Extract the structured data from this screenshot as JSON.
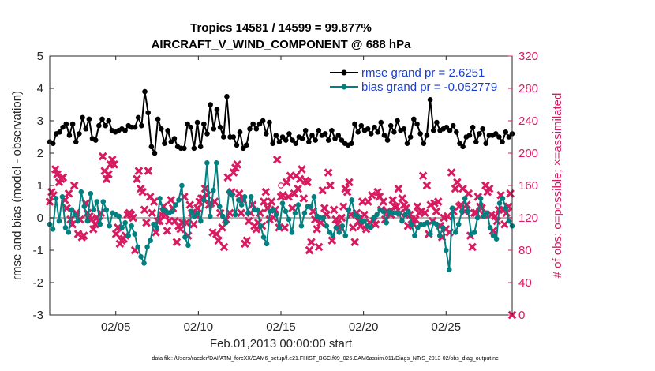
{
  "chart_data": {
    "type": "line",
    "title_line1": "Tropics 14581 / 14599 = 99.877%",
    "title_line2": "AIRCRAFT_V_WIND_COMPONENT @ 688 hPa",
    "xlabel": "Feb.01,2013 00:00:00 start",
    "ylabel_left": "rmse and bias (model - observation)",
    "ylabel_right": "# of obs: o=possible; ×=assimilated",
    "ylim_left": [
      -3,
      5
    ],
    "ylim_right": [
      0,
      320
    ],
    "xlim_days": [
      1,
      29
    ],
    "yticks_left": [
      "-3",
      "-2",
      "-1",
      "0",
      "1",
      "2",
      "3",
      "4",
      "5"
    ],
    "yticks_right": [
      "0",
      "40",
      "80",
      "120",
      "160",
      "200",
      "240",
      "280",
      "320"
    ],
    "xticks": [
      {
        "day": 5,
        "label": "02/05"
      },
      {
        "day": 10,
        "label": "02/10"
      },
      {
        "day": 15,
        "label": "02/15"
      },
      {
        "day": 20,
        "label": "02/20"
      },
      {
        "day": 25,
        "label": "02/25"
      }
    ],
    "footer": "data file: /Users/raeder/DAI/ATM_forcXX/CAM6_setup/f.e21.FHIST_BGC.f09_025.CAM6assim.011/Diags_NTrS_2013-02/obs_diag_output.nc",
    "series": [
      {
        "name": "rmse grand pr = 2.6251",
        "axis": "left",
        "color": "#000000",
        "values": [
          2.35,
          2.3,
          2.6,
          2.65,
          2.8,
          2.9,
          2.55,
          2.9,
          2.35,
          2.6,
          3.1,
          2.75,
          3.05,
          2.45,
          2.4,
          2.85,
          3.05,
          2.85,
          3.0,
          2.7,
          2.65,
          2.7,
          2.75,
          2.7,
          2.85,
          2.8,
          2.8,
          3.1,
          2.85,
          3.9,
          3.25,
          2.2,
          2.0,
          3.05,
          2.75,
          2.3,
          2.7,
          2.35,
          2.45,
          2.2,
          2.15,
          2.15,
          2.9,
          2.8,
          2.15,
          2.95,
          2.2,
          2.9,
          2.6,
          3.5,
          2.75,
          3.35,
          2.8,
          2.5,
          3.75,
          2.5,
          2.5,
          2.25,
          2.65,
          2.15,
          2.25,
          2.75,
          2.9,
          2.75,
          2.9,
          3.0,
          2.6,
          2.95,
          2.3,
          2.55,
          2.35,
          2.5,
          2.4,
          2.6,
          2.4,
          2.3,
          2.5,
          2.45,
          2.7,
          2.35,
          2.55,
          2.4,
          2.7,
          2.55,
          2.6,
          2.4,
          2.7,
          2.45,
          2.55,
          2.4,
          2.3,
          2.25,
          2.3,
          2.9,
          2.65,
          2.85,
          2.7,
          2.75,
          2.6,
          2.8,
          2.65,
          2.95,
          2.55,
          2.4,
          2.85,
          2.65,
          3.0,
          2.7,
          2.75,
          2.3,
          2.5,
          3.05,
          2.9,
          2.6,
          2.3,
          2.55,
          3.65,
          2.7,
          2.95,
          2.7,
          2.75,
          2.8,
          2.7,
          2.85,
          2.65,
          2.3,
          2.2,
          2.5,
          2.55,
          2.8,
          2.35,
          2.6,
          2.75,
          2.3,
          2.55,
          2.55,
          2.6,
          2.5,
          2.35,
          2.65,
          2.5,
          2.6
        ]
      },
      {
        "name": "bias grand pr = -0.052779",
        "axis": "left",
        "color": "#008080",
        "values": [
          -0.2,
          -0.35,
          0.6,
          -0.1,
          0.65,
          -0.3,
          -0.45,
          0.25,
          0.1,
          -0.1,
          0.8,
          0.35,
          -0.1,
          0.75,
          0.25,
          0.5,
          -0.2,
          0.5,
          0.25,
          -0.25,
          0.15,
          0.1,
          0.05,
          -0.3,
          -0.15,
          -0.55,
          -0.25,
          -0.5,
          -0.9,
          -1.2,
          -1.4,
          -0.9,
          -0.7,
          -0.2,
          -0.3,
          0.6,
          0.25,
          0.2,
          0.15,
          0.2,
          0.4,
          0.55,
          1.0,
          -0.6,
          -0.85,
          0.2,
          0.05,
          0.15,
          -0.1,
          0.55,
          1.7,
          0.05,
          0.85,
          1.7,
          0.35,
          0.05,
          -0.15,
          0.8,
          0.7,
          0.1,
          0.55,
          0.4,
          0.65,
          0.15,
          0.65,
          0.25,
          0.25,
          -0.25,
          -0.6,
          -0.8,
          0.2,
          0.25,
          0.1,
          -0.3,
          0.45,
          0.2,
          -0.05,
          -0.45,
          0.15,
          0.4,
          -0.25,
          0.15,
          0.35,
          0.35,
          0.65,
          0.05,
          0.0,
          0.0,
          -0.25,
          -0.45,
          -0.55,
          -0.3,
          -0.45,
          -0.25,
          -0.55,
          0.25,
          0.55,
          0.1,
          0.05,
          -0.1,
          -0.1,
          -0.25,
          -0.3,
          0.0,
          0.1,
          0.25,
          0.2,
          -0.15,
          0.2,
          0.15,
          0.15,
          0.15,
          -0.1,
          0.1,
          0.2,
          -0.2,
          -0.55,
          -0.3,
          -0.2,
          -0.2,
          -0.15,
          -0.5,
          -0.15,
          -0.2,
          -0.55,
          -0.3,
          -1.0,
          -1.6,
          0.3,
          -0.45,
          -0.2,
          0.2,
          0.6,
          0.2,
          -0.5,
          -0.45,
          0.0,
          0.6,
          0.05,
          0.15,
          -0.3,
          -0.55,
          -0.65,
          0.45,
          0.6,
          0.3,
          -0.1,
          -0.25
        ]
      },
      {
        "name": "observations assimilated",
        "axis": "right",
        "color": "#d81b60",
        "marker": "x",
        "values": [
          140,
          152,
          148,
          180,
          174,
          164,
          168,
          170,
          142,
          132,
          150,
          118,
          112,
          160,
          126,
          100,
          118,
          96,
          98,
          138,
          126,
          122,
          118,
          106,
          112,
          120,
          116,
          126,
          196,
          178,
          168,
          174,
          186,
          192,
          186,
          100,
          108,
          88,
          92,
          94,
          98,
          124,
          126,
          124,
          120,
          80,
          168,
          178,
          156,
          152,
          130,
          114,
          178,
          146,
          126,
          140,
          102,
          116,
          116,
          124,
          134,
          124,
          104,
          116,
          142,
          132,
          116,
          90,
          110,
          106,
          114,
          146,
          114,
          98,
          136,
          126,
          112,
          124,
          132,
          140,
          144,
          144,
          156,
          148,
          136,
          138,
          102,
          140,
          100,
          92,
          126,
          108,
          84,
          118,
          170,
          126,
          152,
          176,
          182,
          186,
          150,
          126,
          142,
          88,
          92,
          116,
          126,
          136,
          110,
          106,
          114,
          126,
          110,
          140,
          152,
          132,
          118,
          140,
          120,
          130,
          192,
          108,
          146,
          148,
          108,
          164,
          146,
          172,
          132,
          150,
          172,
          156,
          168,
          180,
          144,
          166,
          164,
          80,
          90,
          128,
          118,
          106,
          84,
          114,
          154,
          132,
          124,
          176,
          160,
          92,
          130,
          118,
          112,
          108,
          120,
          134,
          156,
          152,
          164,
          124,
          108,
          90,
          126,
          116,
          110,
          140,
          124,
          106,
          140,
          114,
          148,
          116,
          112,
          152,
          146,
          130,
          140,
          118,
          128,
          126,
          124,
          142,
          134,
          134,
          156,
          126,
          144,
          136,
          132,
          110,
          124,
          118,
          112,
          118,
          134,
          126,
          128,
          172,
          126,
          160,
          100,
          136,
          116,
          138,
          128,
          140,
          110,
          96,
          120,
          106,
          122,
          102,
          176,
          128,
          156,
          164,
          134,
          136,
          156,
          128,
          136,
          150,
          98,
          84,
          126,
          126,
          146,
          134,
          132,
          124,
          160,
          152,
          156,
          124,
          104,
          122,
          116,
          130,
          148,
          130,
          112,
          126,
          134,
          150,
          0
        ]
      },
      {
        "name": "observations possible",
        "axis": "right",
        "color": "#d81b60",
        "marker": "o",
        "values": [
          160
        ]
      }
    ]
  }
}
